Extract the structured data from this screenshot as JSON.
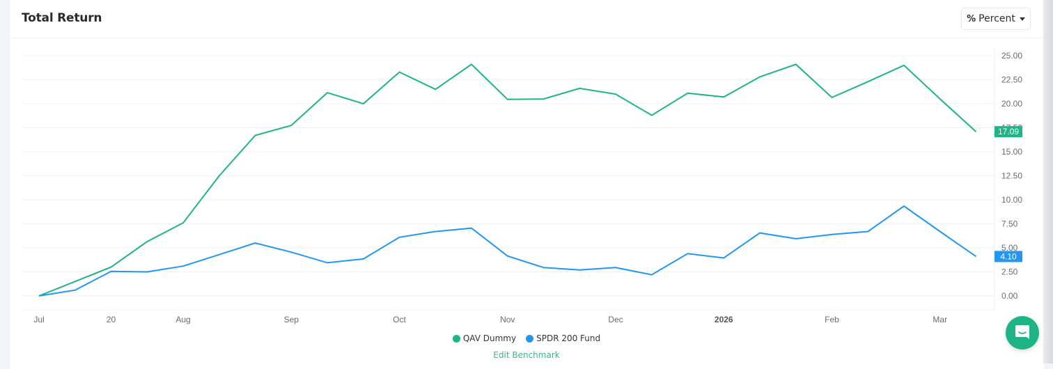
{
  "header": {
    "title": "Total Return",
    "mode_button": {
      "icon": "percent-icon",
      "icon_glyph": "%",
      "label": "Percent",
      "caret": "chevron-down-icon"
    }
  },
  "legend": {
    "items": [
      {
        "label": "QAV Dummy",
        "color": "#1db486"
      },
      {
        "label": "SPDR 200 Fund",
        "color": "#2196f3"
      }
    ]
  },
  "edit_benchmark_label": "Edit Benchmark",
  "chat_button": {
    "icon": "chat-icon",
    "color": "#1db486"
  },
  "last_value_badges": [
    {
      "series": "QAV Dummy",
      "value": "17.09",
      "color": "#1db486"
    },
    {
      "series": "SPDR 200 Fund",
      "value": "4.10",
      "color": "#2196f3"
    }
  ],
  "chart_data": {
    "type": "line",
    "title": "Total Return",
    "xlabel": "",
    "ylabel": "",
    "ylim": [
      0,
      25
    ],
    "y_axis_position": "right",
    "y_ticks": [
      "0.00",
      "2.50",
      "5.00",
      "7.50",
      "10.00",
      "12.50",
      "15.00",
      "17.50",
      "20.00",
      "22.50",
      "25.00"
    ],
    "x_tick_labels": [
      {
        "label": "Jul",
        "index": 0,
        "bold": false
      },
      {
        "label": "20",
        "index": 2,
        "bold": false
      },
      {
        "label": "Aug",
        "index": 4,
        "bold": false
      },
      {
        "label": "Sep",
        "index": 7,
        "bold": false
      },
      {
        "label": "Oct",
        "index": 10,
        "bold": false
      },
      {
        "label": "Nov",
        "index": 13,
        "bold": false
      },
      {
        "label": "Dec",
        "index": 16,
        "bold": false
      },
      {
        "label": "2026",
        "index": 19,
        "bold": true
      },
      {
        "label": "Feb",
        "index": 22,
        "bold": false
      },
      {
        "label": "Mar",
        "index": 25,
        "bold": false
      }
    ],
    "grid": true,
    "legend_position": "bottom",
    "x": [
      0,
      1,
      2,
      3,
      4,
      5,
      6,
      7,
      8,
      9,
      10,
      11,
      12,
      13,
      14,
      15,
      16,
      17,
      18,
      19,
      20,
      21,
      22,
      23,
      24,
      25,
      26
    ],
    "series": [
      {
        "name": "QAV Dummy",
        "color": "#1db486",
        "values": [
          0,
          1.5,
          3.0,
          5.65,
          7.6,
          12.5,
          16.7,
          17.75,
          21.15,
          20.0,
          23.3,
          21.5,
          24.1,
          20.45,
          20.5,
          21.6,
          21.0,
          18.8,
          21.1,
          20.7,
          22.8,
          24.1,
          20.65,
          22.3,
          24.0,
          20.5,
          17.09
        ]
      },
      {
        "name": "SPDR 200 Fund",
        "color": "#2196f3",
        "values": [
          0,
          0.6,
          2.55,
          2.5,
          3.1,
          4.3,
          5.5,
          4.55,
          3.45,
          3.85,
          6.1,
          6.7,
          7.05,
          4.15,
          2.95,
          2.7,
          2.95,
          2.2,
          4.4,
          3.95,
          6.55,
          5.95,
          6.4,
          6.7,
          9.35,
          6.7,
          4.1
        ]
      }
    ]
  }
}
